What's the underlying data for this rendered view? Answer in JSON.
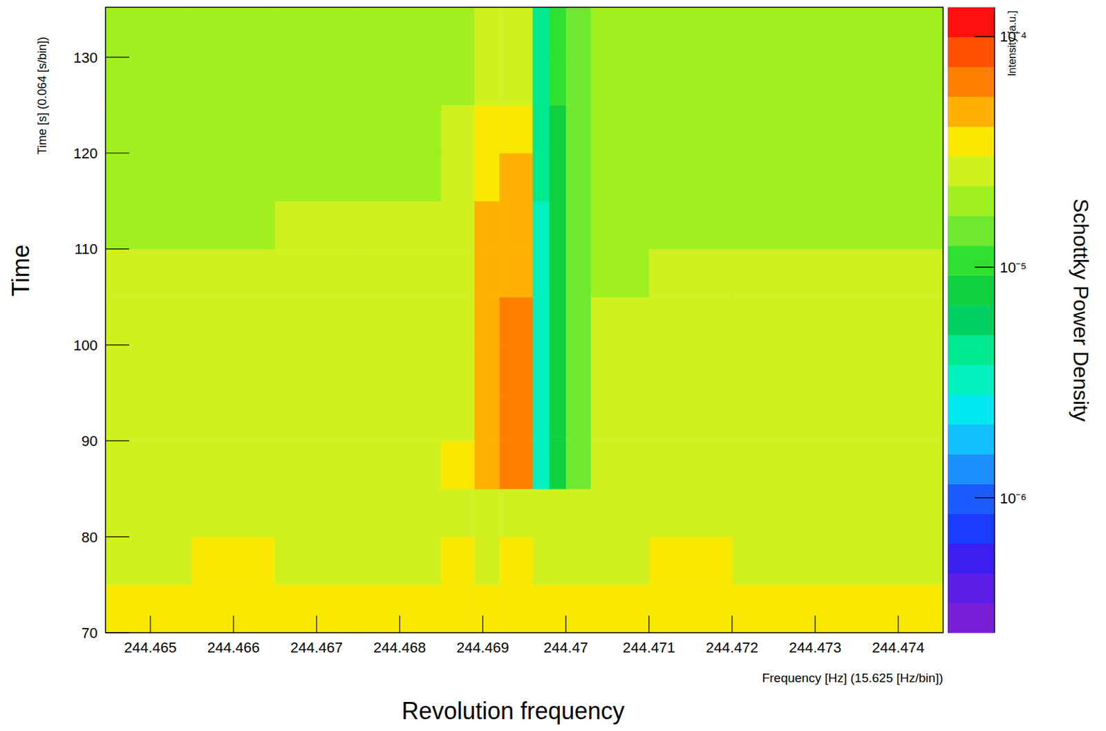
{
  "chart_data": {
    "type": "heatmap",
    "x_label": "Frequency [Hz] (15.625 [Hz/bin])",
    "y_label": "Time [s] (0.064 [s/bin])",
    "annotations": [
      "Time",
      "Revolution frequency",
      "Schottky Power Density"
    ],
    "xlim": [
      244.46446,
      244.47454
    ],
    "xticks": [
      244.465,
      244.466,
      244.467,
      244.468,
      244.469,
      244.47,
      244.471,
      244.472,
      244.473,
      244.474
    ],
    "ylim": [
      70,
      135.2
    ],
    "yticks": [
      70,
      80,
      90,
      100,
      110,
      120,
      130
    ],
    "x_bins": [
      244.46446,
      244.4655,
      244.4665,
      244.4675,
      244.468,
      244.4685,
      244.4689,
      244.4692,
      244.4696,
      244.4698,
      244.47,
      244.4703,
      244.471,
      244.472,
      244.473,
      244.47454
    ],
    "y_bins": [
      70,
      75,
      80,
      85,
      90,
      95,
      100,
      105,
      110,
      115,
      120,
      125,
      130,
      135.2
    ],
    "cells": [
      [
        3.2e-05,
        3.3e-05,
        3.2e-05,
        3.1e-05,
        3.2e-05,
        3.2e-05,
        3.3e-05,
        3.2e-05,
        3.1e-05,
        3.2e-05,
        3.1e-05,
        3.2e-05,
        3.2e-05,
        3.3e-05,
        3.3e-05
      ],
      [
        3e-05,
        3.1e-05,
        3e-05,
        3e-05,
        3e-05,
        3.1e-05,
        3e-05,
        3.1e-05,
        3e-05,
        3e-05,
        3e-05,
        3e-05,
        3.1e-05,
        3e-05,
        3e-05
      ],
      [
        2.8e-05,
        2.9e-05,
        2.8e-05,
        2.8e-05,
        2.9e-05,
        2.8e-05,
        3e-05,
        3e-05,
        2.7e-05,
        2.8e-05,
        2.8e-05,
        2.8e-05,
        2.9e-05,
        2.8e-05,
        2.8e-05
      ],
      [
        2.7e-05,
        2.7e-05,
        2.7e-05,
        2.6e-05,
        2.7e-05,
        3.2e-05,
        5e-05,
        6.2e-05,
        3.5e-06,
        9e-06,
        1.6e-05,
        2.5e-05,
        2.6e-05,
        2.6e-05,
        2.7e-05
      ],
      [
        2.6e-05,
        2.6e-05,
        2.6e-05,
        2.6e-05,
        2.6e-05,
        3e-05,
        4.8e-05,
        5.6e-05,
        3.5e-06,
        8e-06,
        1.5e-05,
        2.4e-05,
        2.5e-05,
        2.5e-05,
        2.6e-05
      ],
      [
        2.5e-05,
        2.5e-05,
        2.6e-05,
        2.5e-05,
        2.6e-05,
        3e-05,
        5e-05,
        5.8e-05,
        3e-06,
        8e-06,
        1.5e-05,
        2.3e-05,
        2.5e-05,
        2.4e-05,
        2.5e-05
      ],
      [
        2.4e-05,
        2.5e-05,
        2.5e-05,
        2.5e-05,
        2.5e-05,
        3e-05,
        4.8e-05,
        5.6e-05,
        3e-06,
        8e-06,
        1.5e-05,
        2.3e-05,
        2.4e-05,
        2.4e-05,
        2.4e-05
      ],
      [
        2.3e-05,
        2.3e-05,
        2.4e-05,
        2.4e-05,
        2.4e-05,
        2.9e-05,
        4.6e-05,
        5.4e-05,
        3.5e-06,
        8e-06,
        1.4e-05,
        2.2e-05,
        2.3e-05,
        2.3e-05,
        2.3e-05
      ],
      [
        2.2e-05,
        2.2e-05,
        2.3e-05,
        2.3e-05,
        2.3e-05,
        2.8e-05,
        4.2e-05,
        4.8e-05,
        3.5e-06,
        8e-06,
        1.4e-05,
        2.1e-05,
        2.2e-05,
        2.2e-05,
        2.2e-05
      ],
      [
        2.1e-05,
        2.2e-05,
        2.2e-05,
        2.2e-05,
        2.2e-05,
        2.6e-05,
        3.8e-05,
        4.2e-05,
        4e-06,
        9e-06,
        1.4e-05,
        2e-05,
        2.1e-05,
        2.1e-05,
        2.1e-05
      ],
      [
        2e-05,
        2.1e-05,
        2.1e-05,
        2.1e-05,
        2.1e-05,
        2.4e-05,
        3.3e-05,
        3.5e-05,
        4.5e-06,
        9e-06,
        1.4e-05,
        2e-05,
        2e-05,
        2e-05,
        2e-05
      ],
      [
        2e-05,
        2e-05,
        2e-05,
        2e-05,
        2e-05,
        2.2e-05,
        2.8e-05,
        3e-05,
        5e-06,
        1e-05,
        1.5e-05,
        1.9e-05,
        2e-05,
        2e-05,
        2e-05
      ],
      [
        2.1e-05,
        2.1e-05,
        2.1e-05,
        2e-05,
        2.1e-05,
        2.2e-05,
        2.6e-05,
        2.8e-05,
        5e-06,
        1e-05,
        1.6e-05,
        2e-05,
        2e-05,
        2.1e-05,
        2.1e-05
      ]
    ],
    "colorbar_label": "Intensity [a.u.]",
    "colorbar_range": [
      2.6e-07,
      0.000134
    ],
    "colorbar_ticks": [
      {
        "value": 1e-06,
        "label": "10⁻⁶"
      },
      {
        "value": 1e-05,
        "label": "10⁻⁵"
      },
      {
        "value": 0.0001,
        "label": "10⁻⁴"
      }
    ]
  }
}
